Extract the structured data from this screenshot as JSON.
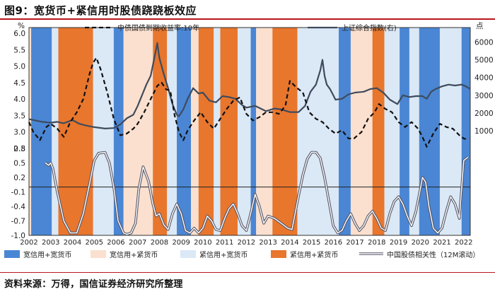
{
  "figure": {
    "title": "图9：宽货币+紧信用时股债跷跷板效应",
    "source": "资料来源：万得，国信证券经济研究所整理"
  },
  "chart_data": {
    "type": "line",
    "x_range": [
      2002,
      2022.3
    ],
    "x_ticks": [
      "2002",
      "2003",
      "2004",
      "2005",
      "2006",
      "2007",
      "2008",
      "2009",
      "2010",
      "2011",
      "2012",
      "2013",
      "2014",
      "2015",
      "2016",
      "2017",
      "2018",
      "2019",
      "2020",
      "2021",
      "2022"
    ],
    "upper_left_axis": {
      "unit": "%",
      "range": [
        2.5,
        6.0
      ],
      "ticks": [
        "6.0",
        "5.5",
        "5.0",
        "4.5",
        "4.0",
        "3.5",
        "3.0",
        "2.5"
      ]
    },
    "upper_right_axis": {
      "unit": "点",
      "range": [
        0,
        6500
      ],
      "ticks": [
        "6000",
        "5000",
        "4000",
        "3000",
        "2000",
        "1000"
      ]
    },
    "lower_left_axis": {
      "range": [
        -1.0,
        0.8
      ],
      "ticks": [
        "0.8",
        "0.5",
        "0.2",
        "-0.1",
        "-0.4",
        "-0.7",
        "-1.0"
      ]
    },
    "regimes": {
      "colors": {
        "A": "#4a86d4",
        "B": "#fbe0cf",
        "C": "#dbe8f6",
        "D": "#e8762d"
      },
      "names": {
        "A": "宽信用+宽货币",
        "B": "宽信用+紧货币",
        "C": "紧信用+宽货币",
        "D": "紧信用+紧货币"
      },
      "periods": [
        {
          "from": 2002.0,
          "to": 2002.1,
          "r": "B"
        },
        {
          "from": 2002.1,
          "to": 2003.05,
          "r": "A"
        },
        {
          "from": 2003.05,
          "to": 2003.35,
          "r": "C"
        },
        {
          "from": 2003.35,
          "to": 2004.95,
          "r": "D"
        },
        {
          "from": 2004.95,
          "to": 2005.9,
          "r": "C"
        },
        {
          "from": 2005.9,
          "to": 2006.35,
          "r": "A"
        },
        {
          "from": 2006.35,
          "to": 2007.7,
          "r": "B"
        },
        {
          "from": 2007.7,
          "to": 2008.35,
          "r": "D"
        },
        {
          "from": 2008.35,
          "to": 2008.8,
          "r": "C"
        },
        {
          "from": 2008.8,
          "to": 2009.45,
          "r": "A"
        },
        {
          "from": 2009.45,
          "to": 2009.8,
          "r": "B"
        },
        {
          "from": 2009.8,
          "to": 2010.5,
          "r": "D"
        },
        {
          "from": 2010.5,
          "to": 2010.8,
          "r": "C"
        },
        {
          "from": 2010.8,
          "to": 2011.6,
          "r": "D"
        },
        {
          "from": 2011.6,
          "to": 2012.2,
          "r": "C"
        },
        {
          "from": 2012.2,
          "to": 2012.45,
          "r": "A"
        },
        {
          "from": 2012.45,
          "to": 2013.2,
          "r": "B"
        },
        {
          "from": 2013.2,
          "to": 2014.35,
          "r": "D"
        },
        {
          "from": 2014.35,
          "to": 2016.25,
          "r": "C"
        },
        {
          "from": 2016.25,
          "to": 2016.8,
          "r": "A"
        },
        {
          "from": 2016.8,
          "to": 2017.8,
          "r": "B"
        },
        {
          "from": 2017.8,
          "to": 2018.35,
          "r": "D"
        },
        {
          "from": 2018.35,
          "to": 2019.05,
          "r": "C"
        },
        {
          "from": 2019.05,
          "to": 2019.5,
          "r": "A"
        },
        {
          "from": 2019.5,
          "to": 2019.95,
          "r": "C"
        },
        {
          "from": 2019.95,
          "to": 2020.9,
          "r": "A"
        },
        {
          "from": 2020.9,
          "to": 2021.9,
          "r": "C"
        },
        {
          "from": 2021.9,
          "to": 2022.3,
          "r": "A"
        }
      ]
    },
    "series": [
      {
        "name": "中债国债到期收益率:10年",
        "axis": "upper_left",
        "style": "dashed",
        "color": "#111111",
        "x": [
          2002.0,
          2002.2,
          2002.5,
          2002.8,
          2003.0,
          2003.3,
          2003.6,
          2003.9,
          2004.2,
          2004.5,
          2004.8,
          2004.95,
          2005.1,
          2005.3,
          2005.6,
          2005.9,
          2006.2,
          2006.5,
          2006.8,
          2007.0,
          2007.3,
          2007.6,
          2007.9,
          2008.1,
          2008.3,
          2008.5,
          2008.7,
          2008.9,
          2009.1,
          2009.3,
          2009.6,
          2009.9,
          2010.2,
          2010.5,
          2010.8,
          2011.1,
          2011.4,
          2011.7,
          2012.0,
          2012.3,
          2012.6,
          2012.9,
          2013.2,
          2013.5,
          2013.8,
          2014.0,
          2014.3,
          2014.6,
          2014.9,
          2015.2,
          2015.5,
          2015.8,
          2016.1,
          2016.4,
          2016.7,
          2016.95,
          2017.3,
          2017.6,
          2017.9,
          2018.1,
          2018.4,
          2018.7,
          2019.0,
          2019.3,
          2019.6,
          2019.9,
          2020.1,
          2020.3,
          2020.6,
          2020.9,
          2021.2,
          2021.5,
          2021.8,
          2022.0,
          2022.2
        ],
        "y": [
          3.3,
          3.0,
          2.75,
          3.15,
          3.25,
          3.1,
          2.85,
          3.3,
          3.6,
          4.0,
          4.8,
          5.1,
          5.25,
          4.9,
          4.2,
          3.4,
          2.9,
          2.95,
          3.1,
          3.25,
          3.6,
          4.0,
          4.4,
          4.5,
          4.3,
          4.25,
          3.5,
          3.0,
          2.75,
          3.05,
          3.35,
          3.6,
          3.3,
          3.1,
          3.4,
          3.7,
          3.95,
          4.05,
          3.55,
          3.35,
          3.45,
          3.6,
          3.6,
          3.55,
          3.8,
          4.55,
          4.35,
          4.2,
          3.6,
          3.4,
          3.3,
          3.1,
          2.95,
          3.05,
          2.8,
          2.8,
          3.0,
          3.4,
          3.6,
          3.85,
          3.7,
          3.6,
          3.3,
          3.15,
          3.3,
          3.1,
          2.85,
          2.55,
          2.95,
          3.25,
          3.15,
          3.1,
          2.9,
          2.8,
          2.77
        ]
      },
      {
        "name": "上证综合指数(右)",
        "axis": "upper_right",
        "style": "solid",
        "color": "#3f4b5c",
        "x": [
          2002.0,
          2002.3,
          2002.6,
          2003.0,
          2003.3,
          2003.6,
          2004.0,
          2004.3,
          2004.6,
          2005.0,
          2005.5,
          2005.9,
          2006.2,
          2006.5,
          2006.8,
          2007.0,
          2007.2,
          2007.4,
          2007.6,
          2007.8,
          2007.9,
          2008.0,
          2008.2,
          2008.4,
          2008.6,
          2008.8,
          2008.9,
          2009.1,
          2009.3,
          2009.55,
          2009.8,
          2010.0,
          2010.3,
          2010.6,
          2010.9,
          2011.2,
          2011.5,
          2011.8,
          2012.0,
          2012.4,
          2012.9,
          2013.3,
          2013.6,
          2014.0,
          2014.4,
          2014.7,
          2014.95,
          2015.2,
          2015.4,
          2015.5,
          2015.6,
          2015.7,
          2015.85,
          2016.0,
          2016.1,
          2016.4,
          2016.7,
          2017.0,
          2017.4,
          2017.7,
          2018.0,
          2018.3,
          2018.6,
          2018.95,
          2019.2,
          2019.5,
          2019.8,
          2020.1,
          2020.3,
          2020.5,
          2020.7,
          2021.0,
          2021.3,
          2021.6,
          2021.9,
          2022.1,
          2022.3
        ],
        "y": [
          1650,
          1580,
          1500,
          1450,
          1500,
          1420,
          1600,
          1400,
          1300,
          1200,
          1120,
          1150,
          1350,
          1700,
          1900,
          2400,
          3000,
          3600,
          4100,
          5300,
          5950,
          5100,
          4200,
          3400,
          2500,
          1900,
          1820,
          2200,
          2800,
          3400,
          3100,
          3150,
          2700,
          2600,
          2950,
          2900,
          2800,
          2450,
          2300,
          2400,
          2100,
          2250,
          2200,
          2050,
          2050,
          2400,
          3200,
          3600,
          4400,
          5000,
          4100,
          3600,
          3350,
          3000,
          2750,
          2800,
          3050,
          3150,
          3200,
          3350,
          3400,
          3150,
          2750,
          2500,
          3000,
          2900,
          2950,
          2950,
          2800,
          3200,
          3350,
          3500,
          3600,
          3550,
          3600,
          3500,
          3350
        ]
      },
      {
        "name": "中国股债相关性（12M滚动）",
        "axis": "lower_left",
        "style": "double",
        "color": "#555566",
        "x": [
          2002.75,
          2002.9,
          2003.0,
          2003.1,
          2003.3,
          2003.6,
          2003.9,
          2004.2,
          2004.5,
          2004.8,
          2005.0,
          2005.2,
          2005.5,
          2005.7,
          2005.9,
          2006.1,
          2006.35,
          2006.5,
          2006.7,
          2006.9,
          2007.05,
          2007.25,
          2007.5,
          2007.7,
          2007.85,
          2008.0,
          2008.2,
          2008.4,
          2008.6,
          2008.8,
          2009.0,
          2009.2,
          2009.4,
          2009.6,
          2009.8,
          2010.0,
          2010.2,
          2010.4,
          2010.6,
          2010.8,
          2011.0,
          2011.2,
          2011.4,
          2011.6,
          2011.8,
          2012.0,
          2012.2,
          2012.4,
          2012.6,
          2012.8,
          2013.0,
          2013.3,
          2013.6,
          2013.9,
          2014.1,
          2014.35,
          2014.6,
          2014.8,
          2015.0,
          2015.2,
          2015.4,
          2015.6,
          2015.8,
          2016.0,
          2016.2,
          2016.4,
          2016.6,
          2016.8,
          2017.0,
          2017.2,
          2017.4,
          2017.6,
          2017.8,
          2018.0,
          2018.2,
          2018.4,
          2018.6,
          2018.8,
          2019.0,
          2019.2,
          2019.4,
          2019.6,
          2019.8,
          2020.0,
          2020.1,
          2020.25,
          2020.4,
          2020.6,
          2020.8,
          2021.0,
          2021.2,
          2021.4,
          2021.6,
          2021.8,
          2022.0,
          2022.2
        ],
        "y": [
          0.5,
          0.45,
          0.5,
          0.38,
          -0.1,
          -0.7,
          -0.95,
          -0.95,
          -0.55,
          0.1,
          0.55,
          0.7,
          0.72,
          0.5,
          0.0,
          -0.7,
          -0.95,
          -0.98,
          -0.95,
          -0.75,
          -0.05,
          0.42,
          0.12,
          -0.35,
          -0.6,
          -0.55,
          -0.78,
          -0.88,
          -0.55,
          -0.35,
          -0.55,
          -0.9,
          -0.95,
          -0.85,
          -0.95,
          -0.85,
          -0.6,
          -0.7,
          -0.88,
          -0.9,
          -0.65,
          -0.45,
          -0.35,
          -0.55,
          -0.8,
          -0.9,
          -0.55,
          -0.15,
          -0.4,
          -0.75,
          -0.6,
          -0.65,
          -0.75,
          -0.85,
          -0.88,
          -0.3,
          0.25,
          0.58,
          0.72,
          0.72,
          0.6,
          0.2,
          -0.3,
          -0.8,
          -0.95,
          -0.9,
          -0.7,
          -0.55,
          -0.75,
          -0.9,
          -0.8,
          -0.6,
          -0.5,
          -0.65,
          -0.85,
          -0.9,
          -0.55,
          -0.3,
          -0.2,
          -0.35,
          -0.6,
          -0.8,
          -0.5,
          -0.05,
          0.2,
          0.1,
          -0.4,
          -0.85,
          -0.95,
          -0.85,
          -0.5,
          -0.2,
          -0.35,
          -0.65,
          0.55,
          0.62
        ]
      }
    ],
    "zero_line": {
      "axis": "lower_left",
      "y": 0
    }
  }
}
